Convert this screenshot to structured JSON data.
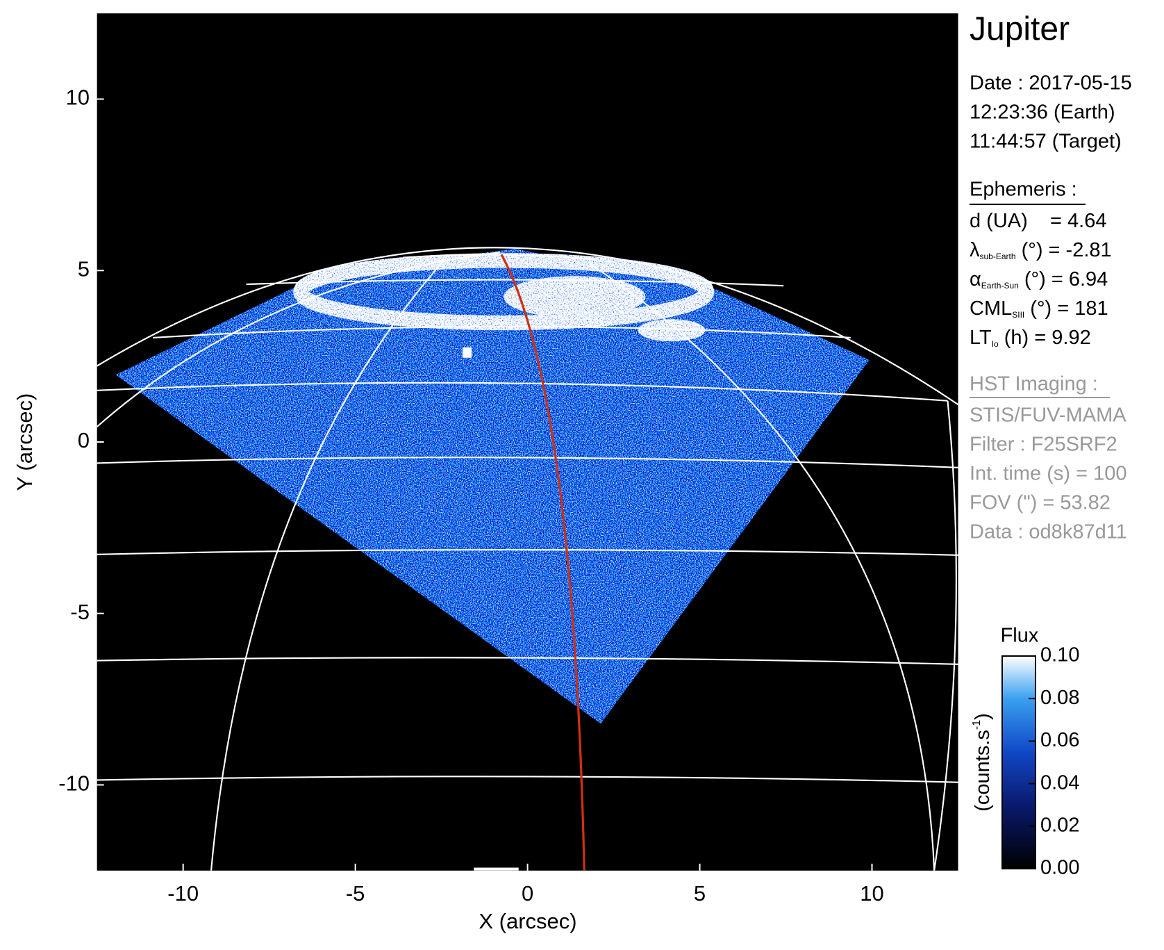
{
  "chart_data": {
    "type": "image",
    "xlabel": "X (arcsec)",
    "ylabel": "Y (arcsec)",
    "xlim": [
      -12.5,
      12.5
    ],
    "ylim": [
      -12.5,
      12.5
    ],
    "xticks": [
      -10,
      -5,
      0,
      5,
      10
    ],
    "yticks": [
      -10,
      -5,
      0,
      5,
      10
    ],
    "colorbar": {
      "title": "Flux",
      "units": {
        "text": "(counts.s",
        "sup": "-1",
        "end": ")"
      },
      "clim": [
        0,
        0.1
      ],
      "ticks": [
        {
          "value": 0,
          "label": "0.00"
        },
        {
          "value": 0.02,
          "label": "0.02"
        },
        {
          "value": 0.04,
          "label": "0.04"
        },
        {
          "value": 0.06,
          "label": "0.06"
        },
        {
          "value": 0.08,
          "label": "0.08"
        },
        {
          "value": 0.1,
          "label": "0.10"
        }
      ]
    },
    "info": {
      "title": "Jupiter",
      "date_lines": [
        "Date : 2017-05-15",
        "12:23:36 (Earth)",
        "11:44:57 (Target)"
      ],
      "ephemeris_title": "Ephemeris :",
      "ephemeris": [
        {
          "main": "d (UA)    = 4.64"
        },
        {
          "main": "λ",
          "sub": "sub-Earth",
          "rest": " (°) = -2.81"
        },
        {
          "main": "α",
          "sub": "Earth-Sun",
          "rest": " (°) = 6.94"
        },
        {
          "main": "CML",
          "sub": "SIII",
          "rest": " (°) = 181"
        },
        {
          "main": "LT",
          "sub": "Io",
          "rest": " (h) = 9.92"
        }
      ],
      "imaging_title": "HST Imaging :",
      "imaging": [
        "STIS/FUV-MAMA",
        "Filter : F25SRF2",
        "Int. time (s) = 100",
        "FOV (\") = 53.82",
        "Data : od8k87d11"
      ]
    }
  }
}
